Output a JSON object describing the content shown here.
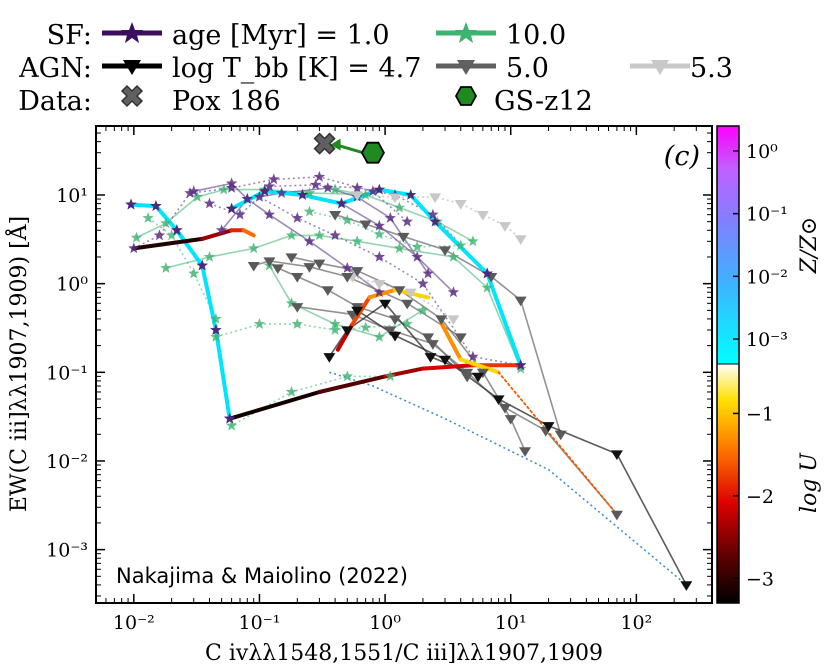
{
  "chart_data": {
    "type": "scatter",
    "xlabel": "C ivλλ1548,1551/C iii]λλ1907,1909",
    "ylabel": "EW(C iii]λλ1907,1909) [Å]",
    "xscale": "log",
    "yscale": "log",
    "xlim": [
      0.005,
      400
    ],
    "ylim": [
      0.00025,
      60
    ],
    "x_ticks": [
      {
        "value": 0.01,
        "label": "10⁻²"
      },
      {
        "value": 0.1,
        "label": "10⁻¹"
      },
      {
        "value": 1,
        "label": "10⁰"
      },
      {
        "value": 10,
        "label": "10¹"
      },
      {
        "value": 100,
        "label": "10²"
      }
    ],
    "y_ticks": [
      {
        "value": 0.001,
        "label": "10⁻³"
      },
      {
        "value": 0.01,
        "label": "10⁻²"
      },
      {
        "value": 0.1,
        "label": "10⁻¹"
      },
      {
        "value": 1,
        "label": "10⁰"
      },
      {
        "value": 10,
        "label": "10¹"
      }
    ],
    "panel_label": "(c)",
    "annotation": "Nakajima & Maiolino (2022)",
    "legend": {
      "rows": [
        {
          "row_label": "SF:",
          "entries": [
            {
              "text": "age [Myr] = 1.0",
              "color": "#3b0f5e",
              "marker": "star"
            },
            {
              "text": "10.0",
              "color": "#3cb371",
              "marker": "star"
            }
          ]
        },
        {
          "row_label": "AGN:",
          "entries": [
            {
              "text": "log T_bb [K] = 4.7",
              "color": "#000000",
              "marker": "tri"
            },
            {
              "text": "5.0",
              "color": "#606060",
              "marker": "tri"
            },
            {
              "text": "5.3",
              "color": "#c8c8c8",
              "marker": "tri"
            }
          ]
        },
        {
          "row_label": "Data:",
          "entries": [
            {
              "text": "Pox 186",
              "color": "#606060",
              "marker": "x"
            },
            {
              "text": "GS-z12",
              "color": "#1f8a1f",
              "marker": "hex"
            }
          ]
        }
      ]
    },
    "colorbar": {
      "label_top": "Z/Z⊙",
      "label_bottom": "log U",
      "top_ticks": [
        {
          "value": 1,
          "label": "10⁰"
        },
        {
          "value": 0.1,
          "label": "10⁻¹"
        },
        {
          "value": 0.01,
          "label": "10⁻²"
        },
        {
          "value": 0.001,
          "label": "10⁻³"
        }
      ],
      "bottom_ticks": [
        {
          "value": -1,
          "label": "−1"
        },
        {
          "value": -2,
          "label": "−2"
        },
        {
          "value": -3,
          "label": "−3"
        }
      ],
      "top_range": [
        0.0004,
        2.5
      ],
      "bottom_range": [
        -3.3,
        -0.4
      ]
    },
    "data_points": [
      {
        "name": "Pox 186",
        "x": 0.33,
        "y": 38
      },
      {
        "name": "GS-z12",
        "x": 0.8,
        "y": 30
      }
    ],
    "sf_young_grid": [
      [
        [
          0.0095,
          7.8
        ],
        [
          0.015,
          7.5
        ],
        [
          0.022,
          4
        ],
        [
          0.035,
          1.6
        ],
        [
          0.045,
          0.3
        ],
        [
          0.058,
          0.03
        ]
      ],
      [
        [
          0.01,
          2.5
        ],
        [
          0.016,
          3.5
        ],
        [
          0.028,
          10.5
        ],
        [
          0.06,
          12
        ],
        [
          0.13,
          15
        ],
        [
          0.3,
          16
        ],
        [
          0.8,
          11
        ],
        [
          1.5,
          5
        ]
      ],
      [
        [
          0.03,
          11
        ],
        [
          0.06,
          13.5
        ],
        [
          0.08,
          9
        ],
        [
          0.12,
          6
        ],
        [
          0.25,
          3
        ],
        [
          0.5,
          1.5
        ],
        [
          0.9,
          0.8
        ]
      ],
      [
        [
          0.04,
          8
        ],
        [
          0.07,
          6
        ],
        [
          0.1,
          9.5
        ],
        [
          0.2,
          5.5
        ],
        [
          0.4,
          3.5
        ],
        [
          0.9,
          2
        ],
        [
          2,
          1
        ],
        [
          5,
          0.15
        ],
        [
          12,
          0.12
        ]
      ],
      [
        [
          0.06,
          7
        ],
        [
          0.11,
          11
        ],
        [
          0.22,
          10
        ],
        [
          0.45,
          8
        ],
        [
          0.9,
          4.5
        ],
        [
          1.8,
          2
        ],
        [
          3.5,
          0.8
        ]
      ],
      [
        [
          0.12,
          12.5
        ],
        [
          0.28,
          13
        ],
        [
          0.6,
          12
        ],
        [
          1.2,
          10
        ],
        [
          2.4,
          6
        ],
        [
          6.5,
          1.3
        ]
      ],
      [
        [
          0.05,
          4
        ],
        [
          0.08,
          9
        ],
        [
          0.15,
          10.5
        ],
        [
          0.35,
          12
        ],
        [
          0.6,
          9.5
        ],
        [
          1.1,
          5.5
        ],
        [
          2.2,
          1.3
        ]
      ]
    ],
    "sf_old_grid": [
      [
        [
          0.0105,
          3.3
        ],
        [
          0.018,
          4.8
        ],
        [
          0.032,
          9.5
        ],
        [
          0.052,
          11.5
        ],
        [
          0.11,
          11.5
        ],
        [
          0.25,
          10.5
        ],
        [
          0.6,
          10.2
        ]
      ],
      [
        [
          0.013,
          5.5
        ],
        [
          0.02,
          3.5
        ],
        [
          0.03,
          1.3
        ],
        [
          0.045,
          0.4
        ],
        [
          0.06,
          0.025
        ],
        [
          0.18,
          0.06
        ],
        [
          0.5,
          0.09
        ],
        [
          1.1,
          0.09
        ]
      ],
      [
        [
          0.018,
          1.5
        ],
        [
          0.04,
          2.0
        ],
        [
          0.09,
          2.5
        ],
        [
          0.18,
          3.5
        ],
        [
          0.3,
          3.5
        ],
        [
          0.6,
          3
        ],
        [
          1.3,
          2.5
        ],
        [
          3.5,
          2
        ],
        [
          6.5,
          0.9
        ],
        [
          12,
          0.11
        ]
      ],
      [
        [
          0.045,
          0.25
        ],
        [
          0.1,
          0.35
        ],
        [
          0.2,
          0.35
        ],
        [
          0.4,
          0.3
        ],
        [
          0.7,
          0.32
        ],
        [
          1.5,
          0.35
        ]
      ],
      [
        [
          0.12,
          1.6
        ],
        [
          0.18,
          0.6
        ],
        [
          0.4,
          0.35
        ],
        [
          0.9,
          0.25
        ],
        [
          2,
          0.5
        ]
      ],
      [
        [
          0.25,
          6.5
        ],
        [
          0.5,
          5.2
        ],
        [
          0.9,
          3.6
        ],
        [
          1.8,
          2.6
        ],
        [
          4,
          2.7
        ]
      ],
      [
        [
          0.4,
          11.5
        ],
        [
          0.7,
          10
        ],
        [
          1.3,
          7.2
        ],
        [
          2.6,
          5
        ],
        [
          5,
          3
        ]
      ]
    ],
    "agn_47_grid": [
      [
        [
          0.36,
          0.15
        ],
        [
          0.5,
          0.3
        ],
        [
          1.0,
          0.6
        ],
        [
          2.3,
          0.15
        ],
        [
          5.5,
          0.09
        ]
      ],
      [
        [
          0.6,
          0.5
        ],
        [
          1.2,
          0.26
        ],
        [
          3,
          0.14
        ],
        [
          8,
          0.05
        ],
        [
          20,
          0.025
        ],
        [
          70,
          0.012
        ],
        [
          250,
          0.0004
        ]
      ]
    ],
    "agn_50_grid": [
      [
        [
          0.14,
          1.5
        ],
        [
          0.2,
          1.2
        ],
        [
          0.35,
          0.85
        ],
        [
          0.6,
          0.55
        ],
        [
          1.2,
          0.4
        ],
        [
          2.2,
          0.25
        ],
        [
          4.5,
          0.09
        ]
      ],
      [
        [
          0.18,
          2
        ],
        [
          0.3,
          1.7
        ],
        [
          0.6,
          1.4
        ],
        [
          1.3,
          0.85
        ],
        [
          2.8,
          0.4
        ],
        [
          6,
          0.1
        ],
        [
          10,
          0.03
        ],
        [
          13,
          0.013
        ]
      ],
      [
        [
          0.4,
          6
        ],
        [
          0.7,
          4.7
        ],
        [
          1.4,
          3.4
        ],
        [
          3,
          2.4
        ],
        [
          7,
          1.2
        ],
        [
          12,
          0.65
        ],
        [
          25,
          0.02
        ]
      ],
      [
        [
          0.2,
          0.55
        ],
        [
          0.55,
          0.45
        ],
        [
          1.1,
          0.3
        ],
        [
          2.4,
          0.21
        ],
        [
          4.5,
          0.1
        ],
        [
          9,
          0.04
        ],
        [
          19,
          0.022
        ],
        [
          70,
          0.0025
        ]
      ],
      [
        [
          0.09,
          1.6
        ],
        [
          0.12,
          1.8
        ],
        [
          0.25,
          1.55
        ],
        [
          0.5,
          1.2
        ],
        [
          1.5,
          0.6
        ],
        [
          4,
          0.25
        ]
      ]
    ],
    "agn_53_grid": [
      [
        [
          0.6,
          10
        ],
        [
          1.2,
          9.5
        ],
        [
          2.5,
          9.5
        ],
        [
          4,
          8
        ],
        [
          6,
          6
        ],
        [
          9,
          4.5
        ],
        [
          12,
          3.2
        ]
      ],
      [
        [
          0.55,
          1.2
        ],
        [
          0.9,
          1.0
        ],
        [
          1.6,
          0.8
        ],
        [
          3.5,
          0.4
        ]
      ]
    ],
    "colored_tracks": [
      {
        "name": "young-lowZ",
        "zcolor": 0.0005,
        "points": [
          [
            0.0095,
            7.8
          ],
          [
            0.015,
            7.5
          ],
          [
            0.022,
            4
          ],
          [
            0.035,
            1.6
          ],
          [
            0.045,
            0.3
          ],
          [
            0.058,
            0.03
          ]
        ]
      },
      {
        "name": "young-mid",
        "zcolor": 0.0006,
        "points": [
          [
            0.06,
            7
          ],
          [
            0.11,
            11
          ],
          [
            0.22,
            10
          ],
          [
            0.45,
            8
          ],
          [
            0.9,
            11.5
          ],
          [
            1.6,
            10
          ],
          [
            2.5,
            5
          ],
          [
            6.5,
            1.3
          ],
          [
            12,
            0.12
          ]
        ]
      },
      {
        "name": "logU-track-1",
        "logU": [
          -3.2,
          -2.8,
          -2.4,
          -2.1,
          -1.8,
          -1.4
        ],
        "points": [
          [
            0.058,
            0.03
          ],
          [
            0.3,
            0.06
          ],
          [
            1,
            0.09
          ],
          [
            2,
            0.11
          ],
          [
            5,
            0.12
          ],
          [
            12,
            0.12
          ]
        ]
      },
      {
        "name": "logU-track-2",
        "logU": [
          -3.1,
          -2.4,
          -1.9,
          -1.5,
          -1.1
        ],
        "points": [
          [
            0.01,
            2.5
          ],
          [
            0.035,
            3.2
          ],
          [
            0.06,
            4
          ],
          [
            0.075,
            4
          ],
          [
            0.09,
            3.5
          ]
        ]
      },
      {
        "name": "logU-track-3",
        "logU": [
          -2.2,
          -1.7,
          -1.3,
          -0.9,
          -0.6
        ],
        "points": [
          [
            0.42,
            0.18
          ],
          [
            0.55,
            0.35
          ],
          [
            0.75,
            0.7
          ],
          [
            1.2,
            0.85
          ],
          [
            2.2,
            0.7
          ]
        ]
      },
      {
        "name": "logU-track-4",
        "logU": [
          -1.3,
          -0.9,
          -0.6
        ],
        "points": [
          [
            2.8,
            0.36
          ],
          [
            4,
            0.14
          ],
          [
            8,
            0.1
          ]
        ]
      },
      {
        "name": "logU-dotted",
        "logU": [
          -1.6,
          -2.2
        ],
        "points": [
          [
            8,
            0.1
          ],
          [
            70,
            0.0025
          ]
        ],
        "dotted": true
      }
    ],
    "blue_dotted": [
      [
        0.36,
        0.1
      ],
      [
        0.8,
        0.07
      ],
      [
        3,
        0.03
      ],
      [
        20,
        0.008
      ],
      [
        250,
        0.0004
      ]
    ]
  }
}
